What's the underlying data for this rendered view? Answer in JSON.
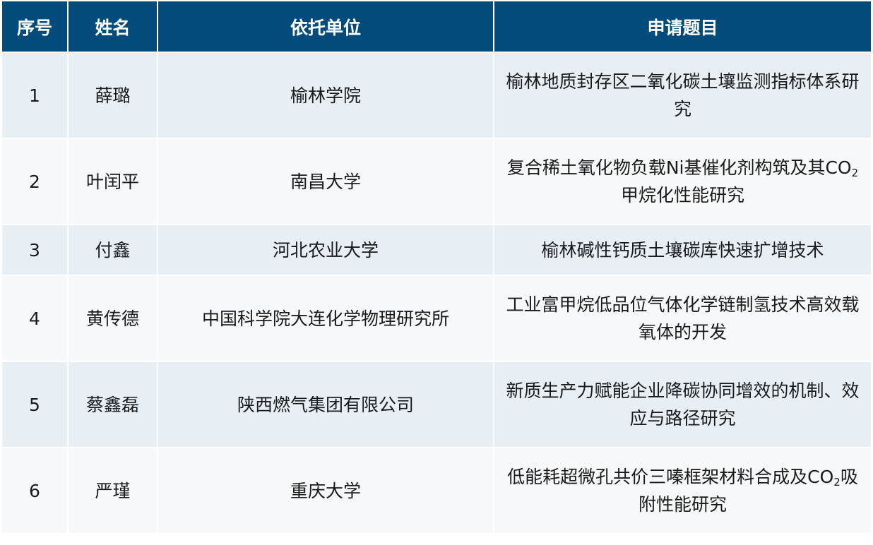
{
  "table": {
    "header_color": "#034b7a",
    "row_colors": [
      "#e7eff5",
      "#f7f8f9"
    ],
    "columns": [
      "序号",
      "姓名",
      "依托单位",
      "申请题目"
    ],
    "rows": [
      {
        "no": "1",
        "name": "薛璐",
        "unit": "榆林学院",
        "title_pre": "榆林地质封存区二氧化碳土壤监测指标体系研究",
        "title_sub": "",
        "title_post": ""
      },
      {
        "no": "2",
        "name": "叶闰平",
        "unit": "南昌大学",
        "title_pre": "复合稀土氧化物负载Ni基催化剂构筑及其CO",
        "title_sub": "2",
        "title_post": "甲烷化性能研究"
      },
      {
        "no": "3",
        "name": "付鑫",
        "unit": "河北农业大学",
        "title_pre": "榆林碱性钙质土壤碳库快速扩增技术",
        "title_sub": "",
        "title_post": ""
      },
      {
        "no": "4",
        "name": "黄传德",
        "unit": "中国科学院大连化学物理研究所",
        "title_pre": "工业富甲烷低品位气体化学链制氢技术高效载氧体的开发",
        "title_sub": "",
        "title_post": ""
      },
      {
        "no": "5",
        "name": "蔡鑫磊",
        "unit": "陕西燃气集团有限公司",
        "title_pre": "新质生产力赋能企业降碳协同增效的机制、效应与路径研究",
        "title_sub": "",
        "title_post": ""
      },
      {
        "no": "6",
        "name": "严瑾",
        "unit": "重庆大学",
        "title_pre": "低能耗超微孔共价三嗪框架材料合成及CO",
        "title_sub": "2",
        "title_post": "吸附性能研究"
      }
    ]
  }
}
